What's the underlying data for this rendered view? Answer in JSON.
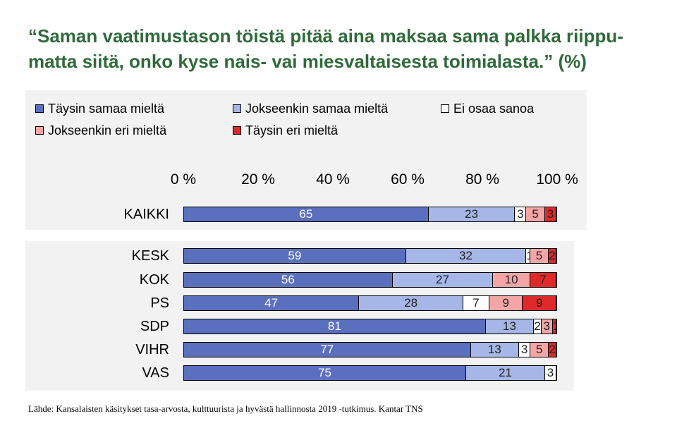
{
  "title": "“Saman vaatimustason töistä pitää aina maksaa sama palkka riippu-matta siitä, onko kyse nais- vai miesvaltaisesta toimialasta.” (%)",
  "source": "Lähde: Kansalaisten käsitykset tasa-arvosta, kulttuurista ja hyvästä hallinnosta 2019 -tutkimus. Kantar TNS",
  "chart_data": {
    "type": "bar",
    "orientation": "horizontal",
    "stacked": true,
    "xlim": [
      0,
      100
    ],
    "tick_labels": [
      "0 %",
      "20 %",
      "40 %",
      "60 %",
      "80 %",
      "100 %"
    ],
    "legend_position": "top",
    "categories": [
      "KAIKKI",
      "KESK",
      "KOK",
      "PS",
      "SDP",
      "VIHR",
      "VAS"
    ],
    "series": [
      {
        "name": "Täysin samaa mieltä",
        "color": "#5b6fbf",
        "values": [
          65,
          59,
          56,
          47,
          81,
          77,
          75
        ]
      },
      {
        "name": "Jokseenkin samaa mieltä",
        "color": "#a6b6e6",
        "values": [
          23,
          32,
          27,
          28,
          13,
          13,
          21
        ]
      },
      {
        "name": "Ei osaa sanoa",
        "color": "#ffffff",
        "values": [
          3,
          1,
          0,
          7,
          2,
          3,
          3
        ]
      },
      {
        "name": "Jokseenkin eri mieltä",
        "color": "#f4a6a6",
        "values": [
          5,
          5,
          10,
          9,
          3,
          5,
          0
        ]
      },
      {
        "name": "Täysin eri mieltä",
        "color": "#e02a2a",
        "values": [
          3,
          2,
          7,
          9,
          1,
          2,
          0
        ]
      }
    ]
  }
}
